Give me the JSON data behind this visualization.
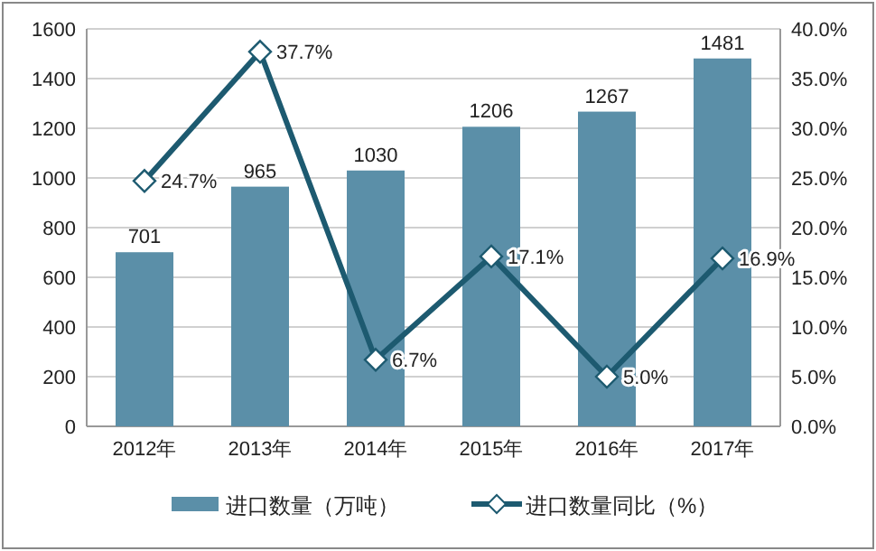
{
  "chart_data": {
    "type": "bar",
    "categories": [
      "2012年",
      "2013年",
      "2014年",
      "2015年",
      "2016年",
      "2017年"
    ],
    "series": [
      {
        "name": "进口数量（万吨）",
        "color": "#5b8fa8",
        "values": [
          701,
          965,
          1030,
          1206,
          1267,
          1481
        ],
        "value_labels": [
          "701",
          "965",
          "1030",
          "1206",
          "1267",
          "1481"
        ]
      },
      {
        "name": "进口数量同比（%）",
        "type": "line",
        "axis": "y2",
        "color": "#1d5a70",
        "marker": "diamond",
        "values": [
          24.7,
          37.7,
          6.7,
          17.1,
          5.0,
          16.9
        ],
        "value_labels": [
          "24.7%",
          "37.7%",
          "6.7%",
          "17.1%",
          "5.0%",
          "16.9%"
        ]
      }
    ],
    "ylim": [
      0,
      1600
    ],
    "yticks": [
      0,
      200,
      400,
      600,
      800,
      1000,
      1200,
      1400,
      1600
    ],
    "y2lim": [
      0,
      40
    ],
    "y2ticks": [
      {
        "value": 0,
        "label": "0.0%"
      },
      {
        "value": 5,
        "label": "5.0%"
      },
      {
        "value": 10,
        "label": "10.0%"
      },
      {
        "value": 15,
        "label": "15.0%"
      },
      {
        "value": 20,
        "label": "20.0%"
      },
      {
        "value": 25,
        "label": "25.0%"
      },
      {
        "value": 30,
        "label": "30.0%"
      },
      {
        "value": 35,
        "label": "35.0%"
      },
      {
        "value": 40,
        "label": "40.0%"
      }
    ],
    "grid": "y",
    "legend": "bottom"
  }
}
